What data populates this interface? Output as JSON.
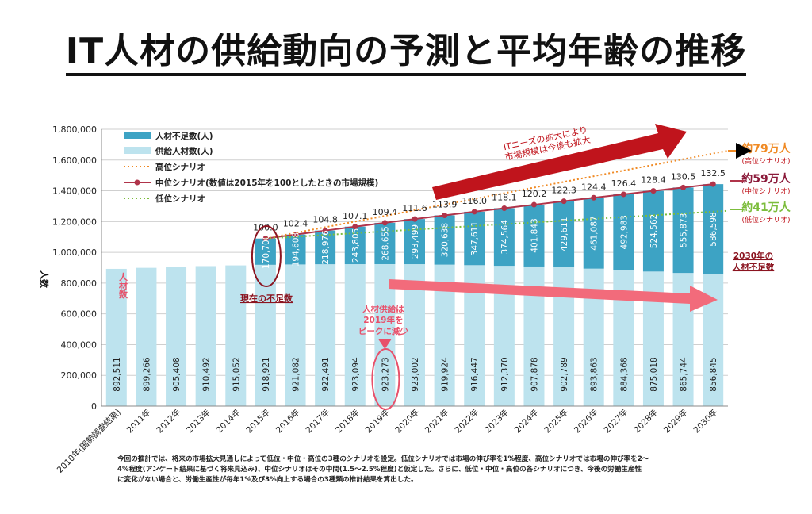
{
  "title": "IT人材の供給動向の予測と平均年齢の推移",
  "chart_data": {
    "type": "bar",
    "categories": [
      "2010年(国勢調査結果)",
      "2011年",
      "2012年",
      "2013年",
      "2014年",
      "2015年",
      "2016年",
      "2017年",
      "2018年",
      "2019年",
      "2020年",
      "2021年",
      "2022年",
      "2023年",
      "2024年",
      "2025年",
      "2026年",
      "2027年",
      "2028年",
      "2029年",
      "2030年"
    ],
    "ylabel": "人数",
    "ylim": [
      0,
      1800000
    ],
    "yticks": [
      "0",
      "200,000",
      "400,000",
      "600,000",
      "800,000",
      "1,000,000",
      "1,200,000",
      "1,400,000",
      "1,600,000",
      "1,800,000"
    ],
    "grid": true,
    "legend_position": "top-left",
    "series": [
      {
        "name": "人材不足数(人)",
        "color": "#3da3c4",
        "values": [
          null,
          null,
          null,
          null,
          null,
          170700,
          194608,
          218976,
          243805,
          268655,
          293499,
          320638,
          347611,
          374564,
          401843,
          429611,
          461087,
          492983,
          524562,
          555873,
          586598
        ],
        "labels": [
          "",
          "",
          "",
          "",
          "",
          "170,700",
          "194,608",
          "218,976",
          "243,805",
          "268,655",
          "293,499",
          "320,638",
          "347,611",
          "374,564",
          "401,843",
          "429,611",
          "461,087",
          "492,983",
          "524,562",
          "555,873",
          "586,598"
        ]
      },
      {
        "name": "供給人材数(人)",
        "color": "#bde3ee",
        "values": [
          892511,
          899266,
          905408,
          910492,
          915052,
          918921,
          921082,
          922491,
          923094,
          923273,
          923002,
          919924,
          916447,
          912370,
          907878,
          902789,
          893863,
          884368,
          875018,
          865744,
          856845
        ],
        "labels": [
          "892,511",
          "899,266",
          "905,408",
          "910,492",
          "915,052",
          "918,921",
          "921,082",
          "922,491",
          "923,094",
          "923,273",
          "923,002",
          "919,924",
          "916,447",
          "912,370",
          "907,878",
          "902,789",
          "893,863",
          "884,368",
          "875,018",
          "865,744",
          "856,845"
        ]
      }
    ],
    "scenarios": [
      {
        "name": "高位シナリオ",
        "color": "#f08a24",
        "style": "dotted",
        "start_year_index": 5,
        "end_total": 1660000
      },
      {
        "name": "中位シナリオ(数値は2015年を100としたときの市場規模)",
        "color": "#b0344a",
        "style": "line-marker",
        "index_values": [
          100.0,
          102.4,
          104.8,
          107.1,
          109.4,
          111.6,
          113.9,
          116.0,
          118.1,
          120.2,
          122.3,
          124.4,
          126.4,
          128.4,
          130.5,
          132.5
        ],
        "index_labels": [
          "100.0",
          "102.4",
          "104.8",
          "107.1",
          "109.4",
          "111.6",
          "113.9",
          "116.0",
          "118.1",
          "120.2",
          "122.3",
          "124.4",
          "126.4",
          "128.4",
          "130.5",
          "132.5"
        ]
      },
      {
        "name": "低位シナリオ",
        "color": "#7cbd3c",
        "style": "dotted",
        "start_year_index": 5,
        "end_total": 1270000
      }
    ],
    "annotations": {
      "current_shortage": "現在の不足数",
      "supply_label": "人材数",
      "peak_note": [
        "人材供給は",
        "2019年を",
        "ピークに減少"
      ],
      "market_note": [
        "ITニーズの拡大により",
        "市場規模は今後も拡大"
      ],
      "shortage_2030": [
        "2030年の",
        "人材不足数"
      ],
      "high_total": "約79万人",
      "high_sub": "(高位シナリオ)",
      "mid_total": "約59万人",
      "mid_sub": "(中位シナリオ)",
      "low_total": "約41万人",
      "low_sub": "(低位シナリオ)"
    }
  },
  "footnote": [
    "今回の推計では、将来の市場拡大見通しによって低位・中位・高位の3種のシナリオを設定。低位シナリオでは市場の伸び率を1%程度、高位シナリオでは市場の伸び率を2～",
    "4%程度(アンケート結果に基づく将来見込み)、中位シナリオはその中間(1.5～2.5%程度)と仮定した。さらに、低位・中位・高位の各シナリオにつき、今後の労働生産性",
    "に変化がない場合と、労働生産性が毎年1%及び3%向上する場合の3種類の推計結果を算出した。"
  ],
  "colors": {
    "shortage": "#3da3c4",
    "supply": "#bde3ee",
    "high": "#f08a24",
    "mid": "#b0344a",
    "low": "#7cbd3c",
    "arrow": "#c0141c",
    "arrow_light": "#f26b7b"
  }
}
